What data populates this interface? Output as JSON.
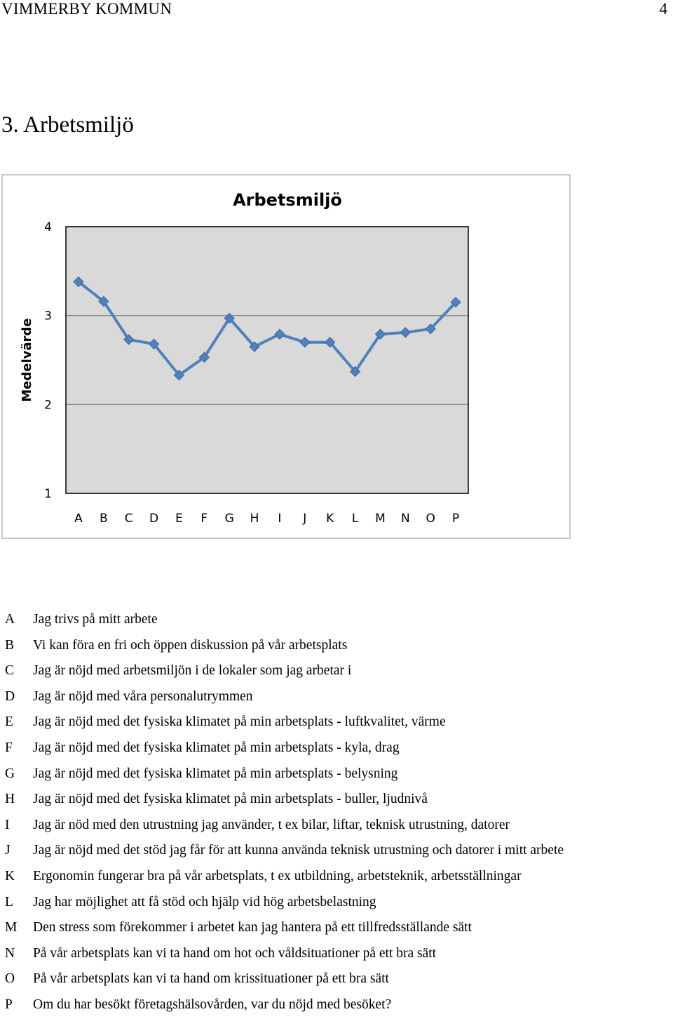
{
  "header": {
    "org": "VIMMERBY KOMMUN",
    "page_number": "4"
  },
  "section_title": "3. Arbetsmiljö",
  "chart_data": {
    "type": "line",
    "title": "Arbetsmiljö",
    "xlabel": "",
    "ylabel": "Medelvärde",
    "categories": [
      "A",
      "B",
      "C",
      "D",
      "E",
      "F",
      "G",
      "H",
      "I",
      "J",
      "K",
      "L",
      "M",
      "N",
      "O",
      "P"
    ],
    "yticks": [
      "1",
      "2",
      "3",
      "4"
    ],
    "ylim": [
      1,
      4
    ],
    "grid": true,
    "plot_background": "#d9d9d9",
    "series_color": "#4f81bd",
    "series": [
      {
        "values": [
          3.38,
          3.16,
          2.73,
          2.68,
          2.33,
          2.53,
          2.97,
          2.65,
          2.79,
          2.7,
          2.7,
          2.37,
          2.79,
          2.81,
          2.85,
          3.15
        ]
      }
    ]
  },
  "legend": [
    {
      "letter": "A",
      "text": "Jag trivs på mitt arbete"
    },
    {
      "letter": "B",
      "text": "Vi kan föra en fri och öppen diskussion på vår arbetsplats"
    },
    {
      "letter": "C",
      "text": "Jag är nöjd med arbetsmiljön i de lokaler som jag arbetar i"
    },
    {
      "letter": "D",
      "text": "Jag är nöjd med våra personalutrymmen"
    },
    {
      "letter": "E",
      "text": "Jag är nöjd med det fysiska klimatet på min arbetsplats - luftkvalitet, värme"
    },
    {
      "letter": "F",
      "text": "Jag är nöjd med det fysiska klimatet på min arbetsplats - kyla, drag"
    },
    {
      "letter": "G",
      "text": "Jag är nöjd med det fysiska klimatet på min arbetsplats - belysning"
    },
    {
      "letter": "H",
      "text": "Jag är nöjd med det fysiska klimatet på min arbetsplats - buller, ljudnivå"
    },
    {
      "letter": "I",
      "text": "Jag är nöd med den utrustning jag använder, t ex bilar, liftar, teknisk utrustning, datorer"
    },
    {
      "letter": "J",
      "text": "Jag är nöjd med det stöd jag får för att kunna använda teknisk utrustning och datorer i mitt arbete"
    },
    {
      "letter": "K",
      "text": "Ergonomin fungerar bra på vår arbetsplats, t ex utbildning, arbetsteknik, arbetsställningar"
    },
    {
      "letter": "L",
      "text": "Jag har möjlighet att få stöd och hjälp vid hög arbetsbelastning"
    },
    {
      "letter": "M",
      "text": "Den stress som förekommer i arbetet kan jag hantera på ett tillfredsställande sätt"
    },
    {
      "letter": "N",
      "text": "På vår arbetsplats kan vi ta hand om hot och våldsituationer på ett bra sätt"
    },
    {
      "letter": "O",
      "text": "På vår arbetsplats kan vi ta hand om krissituationer på ett bra sätt"
    },
    {
      "letter": "P",
      "text": "Om du har besökt företagshälsovården, var du nöjd med besöket?"
    }
  ]
}
